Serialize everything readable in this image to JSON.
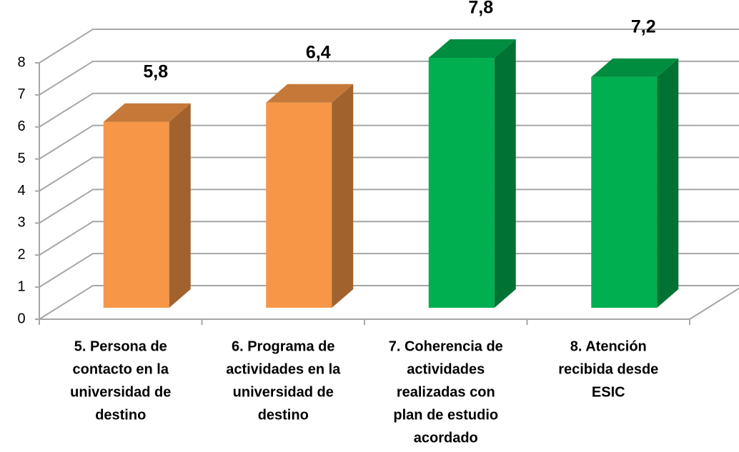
{
  "chart_data": {
    "type": "bar3d",
    "categories": [
      [
        "5. Persona de",
        "contacto en la",
        "universidad de",
        "destino"
      ],
      [
        "6. Programa de",
        "actividades en la",
        "universidad de",
        "destino"
      ],
      [
        "7. Coherencia de",
        "actividades",
        "realizadas con",
        "plan de estudio",
        "acordado"
      ],
      [
        "8. Atención",
        "recibida desde",
        "ESIC"
      ]
    ],
    "values": [
      5.8,
      6.4,
      7.8,
      7.2
    ],
    "value_labels": [
      "5,8",
      "6,4",
      "7,8",
      "7,2"
    ],
    "colors": [
      "#f79646",
      "#f79646",
      "#00b050",
      "#00b050"
    ],
    "ylim": [
      0,
      8
    ],
    "yticks": [
      0,
      1,
      2,
      3,
      4,
      5,
      6,
      7,
      8
    ],
    "grid": true
  }
}
